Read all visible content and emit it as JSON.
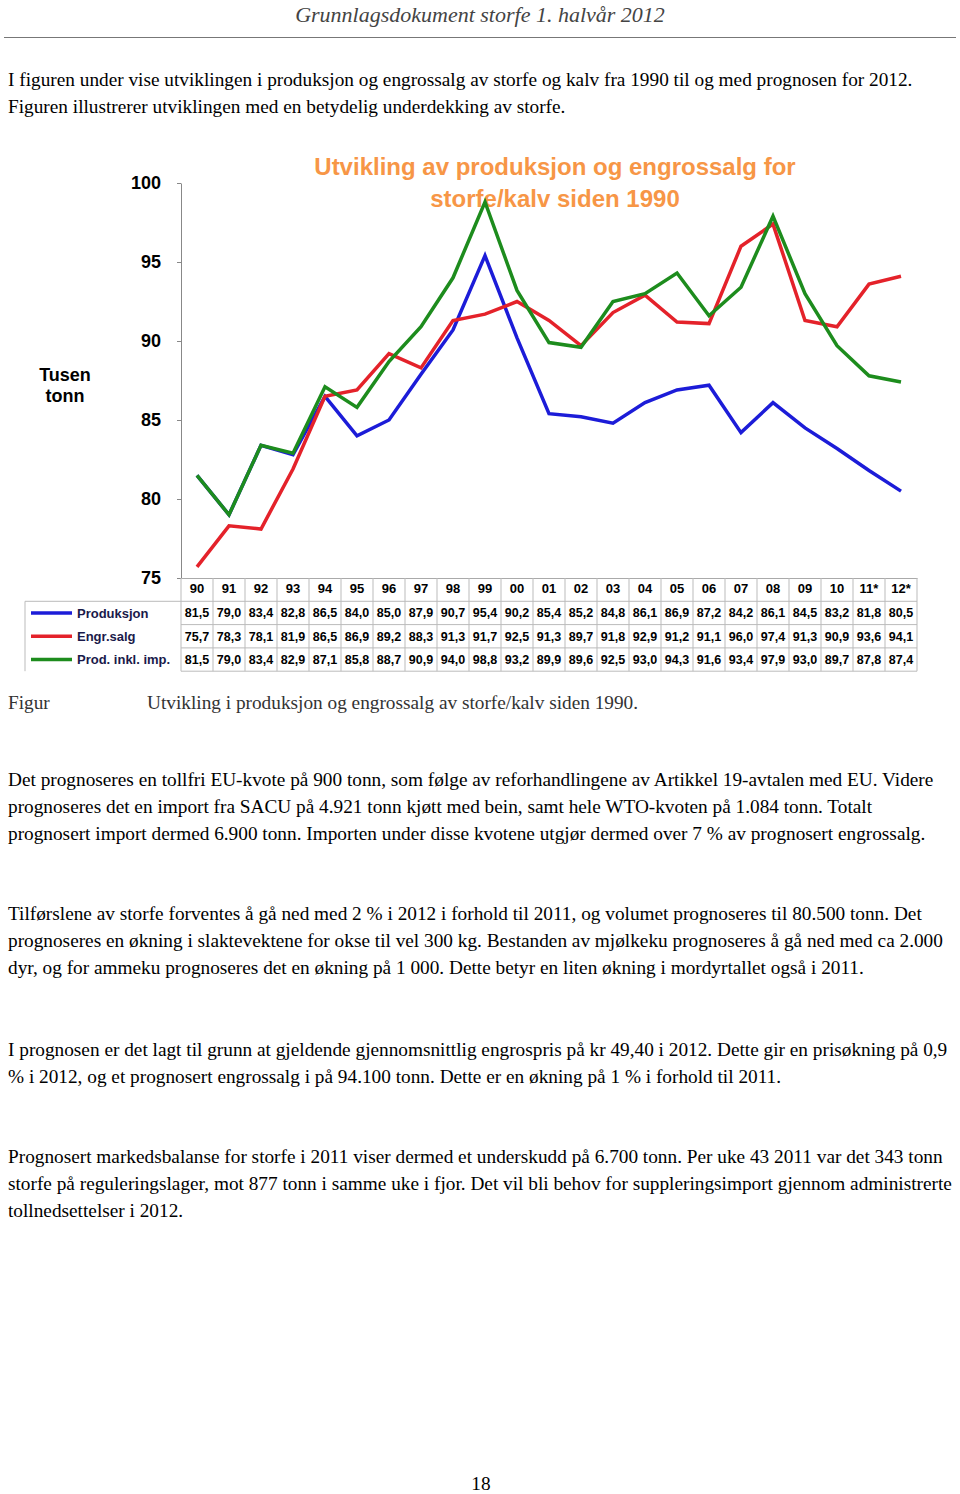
{
  "header": "Grunnlagsdokument storfe 1. halvår 2012",
  "intro": "I figuren under vise utviklingen i produksjon og engrossalg av storfe og kalv fra 1990 til og med prognosen for 2012. Figuren illustrerer utviklingen med en betydelig underdekking av storfe.",
  "chart_data": {
    "type": "line",
    "title": "Utvikling av produksjon og engrossalg for storfe/kalv siden 1990",
    "y_label": "Tusen tonn",
    "categories": [
      "90",
      "91",
      "92",
      "93",
      "94",
      "95",
      "96",
      "97",
      "98",
      "99",
      "00",
      "01",
      "02",
      "03",
      "04",
      "05",
      "06",
      "07",
      "08",
      "09",
      "10",
      "11*",
      "12*"
    ],
    "ylim": [
      75,
      100
    ],
    "yticks": [
      75,
      80,
      85,
      90,
      95,
      100
    ],
    "grid": false,
    "legend": "bottom",
    "data_labels": true,
    "series": [
      {
        "name": "Produksjon",
        "color": "#1c1cd8",
        "values": [
          81.5,
          79.0,
          83.4,
          82.8,
          86.5,
          84.0,
          85.0,
          87.9,
          90.7,
          95.4,
          90.2,
          85.4,
          85.2,
          84.8,
          86.1,
          86.9,
          87.2,
          84.2,
          86.1,
          84.5,
          83.2,
          81.8,
          80.5
        ],
        "value_labels": [
          "81,5",
          "79,0",
          "83,4",
          "82,8",
          "86,5",
          "84,0",
          "85,0",
          "87,9",
          "90,7",
          "95,4",
          "90,2",
          "85,4",
          "85,2",
          "84,8",
          "86,1",
          "86,9",
          "87,2",
          "84,2",
          "86,1",
          "84,5",
          "83,2",
          "81,8",
          "80,5"
        ]
      },
      {
        "name": "Engr.salg",
        "color": "#e4222a",
        "values": [
          75.7,
          78.3,
          78.1,
          81.9,
          86.5,
          86.9,
          89.2,
          88.3,
          91.3,
          91.7,
          92.5,
          91.3,
          89.7,
          91.8,
          92.9,
          91.2,
          91.1,
          96.0,
          97.4,
          91.3,
          90.9,
          93.6,
          94.1
        ],
        "value_labels": [
          "75,7",
          "78,3",
          "78,1",
          "81,9",
          "86,5",
          "86,9",
          "89,2",
          "88,3",
          "91,3",
          "91,7",
          "92,5",
          "91,3",
          "89,7",
          "91,8",
          "92,9",
          "91,2",
          "91,1",
          "96,0",
          "97,4",
          "91,3",
          "90,9",
          "93,6",
          "94,1"
        ]
      },
      {
        "name": "Prod. inkl. imp.",
        "color": "#1d8c1d",
        "values": [
          81.5,
          79.0,
          83.4,
          82.9,
          87.1,
          85.8,
          88.7,
          90.9,
          94.0,
          98.8,
          93.2,
          89.9,
          89.6,
          92.5,
          93.0,
          94.3,
          91.6,
          93.4,
          97.9,
          93.0,
          89.7,
          87.8,
          87.4
        ],
        "value_labels": [
          "81,5",
          "79,0",
          "83,4",
          "82,9",
          "87,1",
          "85,8",
          "88,7",
          "90,9",
          "94,0",
          "98,8",
          "93,2",
          "89,9",
          "89,6",
          "92,5",
          "93,0",
          "94,3",
          "91,6",
          "93,4",
          "97,9",
          "93,0",
          "89,7",
          "87,8",
          "87,4"
        ]
      }
    ]
  },
  "caption": {
    "label": "Figur",
    "text": "Utvikling i produksjon og engrossalg av storfe/kalv siden 1990."
  },
  "paragraphs": [
    "Det prognoseres en tollfri EU-kvote på 900 tonn, som følge av reforhandlingene av Artikkel 19-avtalen med EU. Videre prognoseres det en import fra SACU på 4.921 tonn kjøtt med bein, samt hele WTO-kvoten på 1.084 tonn. Totalt prognosert import dermed 6.900 tonn. Importen under disse kvotene utgjør dermed over 7 % av prognosert engrossalg.",
    "Tilførslene av storfe forventes å gå ned med 2 % i 2012 i forhold til 2011, og volumet prognoseres til 80.500 tonn. Det prognoseres en økning i slaktevektene for okse til vel 300 kg. Bestanden av mjølkeku prognoseres å gå ned med ca 2.000 dyr, og for ammeku prognoseres det en økning på 1 000. Dette betyr en liten økning i mordyrtallet også i 2011.",
    "I prognosen er det lagt til grunn at gjeldende gjennomsnittlig engrospris på kr 49,40 i 2012. Dette gir en prisøkning på 0,9 % i 2012, og et prognosert engrossalg i på 94.100 tonn. Dette er en økning på 1 % i forhold til 2011.",
    "Prognosert markedsbalanse for storfe i 2011 viser dermed et underskudd på 6.700 tonn. Per uke 43 2011 var det 343 tonn storfe på reguleringslager, mot 877 tonn i samme uke i fjor. Det vil bli behov for suppleringsimport gjennom administrerte tollnedsettelser i 2012."
  ],
  "page_number": "18"
}
